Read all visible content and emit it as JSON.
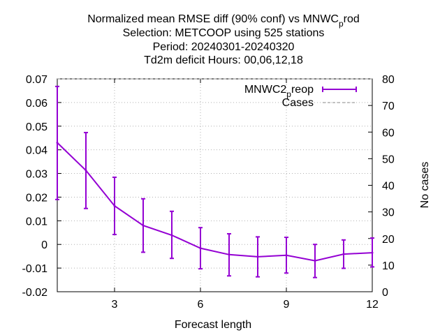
{
  "chart_data": {
    "type": "line",
    "title": {
      "line1_main": "Normalized mean RMSE diff (90% conf) vs MNWC",
      "line1_sub": "p",
      "line1_tail": "rod",
      "line2": "Selection: METCOOP using   525 stations",
      "line3": "Period: 20240301-20240320",
      "line4": "Td2m deficit   Hours:  00,06,12,18"
    },
    "xlabel": "Forecast length",
    "ylabel": "",
    "y2label": "No cases",
    "xlim": [
      1,
      12
    ],
    "ylim": [
      -0.02,
      0.07
    ],
    "y2lim": [
      0,
      80
    ],
    "x_ticks": [
      3,
      6,
      9,
      12
    ],
    "y_ticks": [
      "-0.02",
      "-0.01",
      "0",
      "0.01",
      "0.02",
      "0.03",
      "0.04",
      "0.05",
      "0.06",
      "0.07"
    ],
    "y2_ticks": [
      "0",
      "10",
      "20",
      "30",
      "40",
      "50",
      "60",
      "70",
      "80"
    ],
    "grid": true,
    "legend_position": "top-right",
    "series": [
      {
        "name_main": "MNWC2",
        "name_sub": "p",
        "name_tail": "reop",
        "color": "#9400d3",
        "x": [
          1,
          2,
          3,
          4,
          5,
          6,
          7,
          8,
          9,
          10,
          11,
          12
        ],
        "y": [
          0.043,
          0.0313,
          0.0163,
          0.008,
          0.0039,
          -0.0016,
          -0.0043,
          -0.0052,
          -0.0046,
          -0.0069,
          -0.0041,
          -0.0035
        ],
        "err_low": [
          0.019,
          0.0152,
          0.0042,
          -0.0033,
          -0.0059,
          -0.0103,
          -0.0133,
          -0.0137,
          -0.0121,
          -0.014,
          -0.0101,
          -0.0095
        ],
        "err_high": [
          0.0668,
          0.0473,
          0.0284,
          0.0193,
          0.014,
          0.0071,
          0.0045,
          0.0032,
          0.003,
          0.0,
          0.0019,
          0.0027
        ]
      },
      {
        "name": "Cases",
        "color": "#888888",
        "x": [
          1,
          2,
          3,
          4,
          5,
          6,
          7,
          8,
          9,
          10,
          11,
          12
        ],
        "y": [
          80,
          80,
          80,
          80,
          80,
          80,
          80,
          80,
          80,
          80,
          80,
          80
        ]
      }
    ]
  }
}
